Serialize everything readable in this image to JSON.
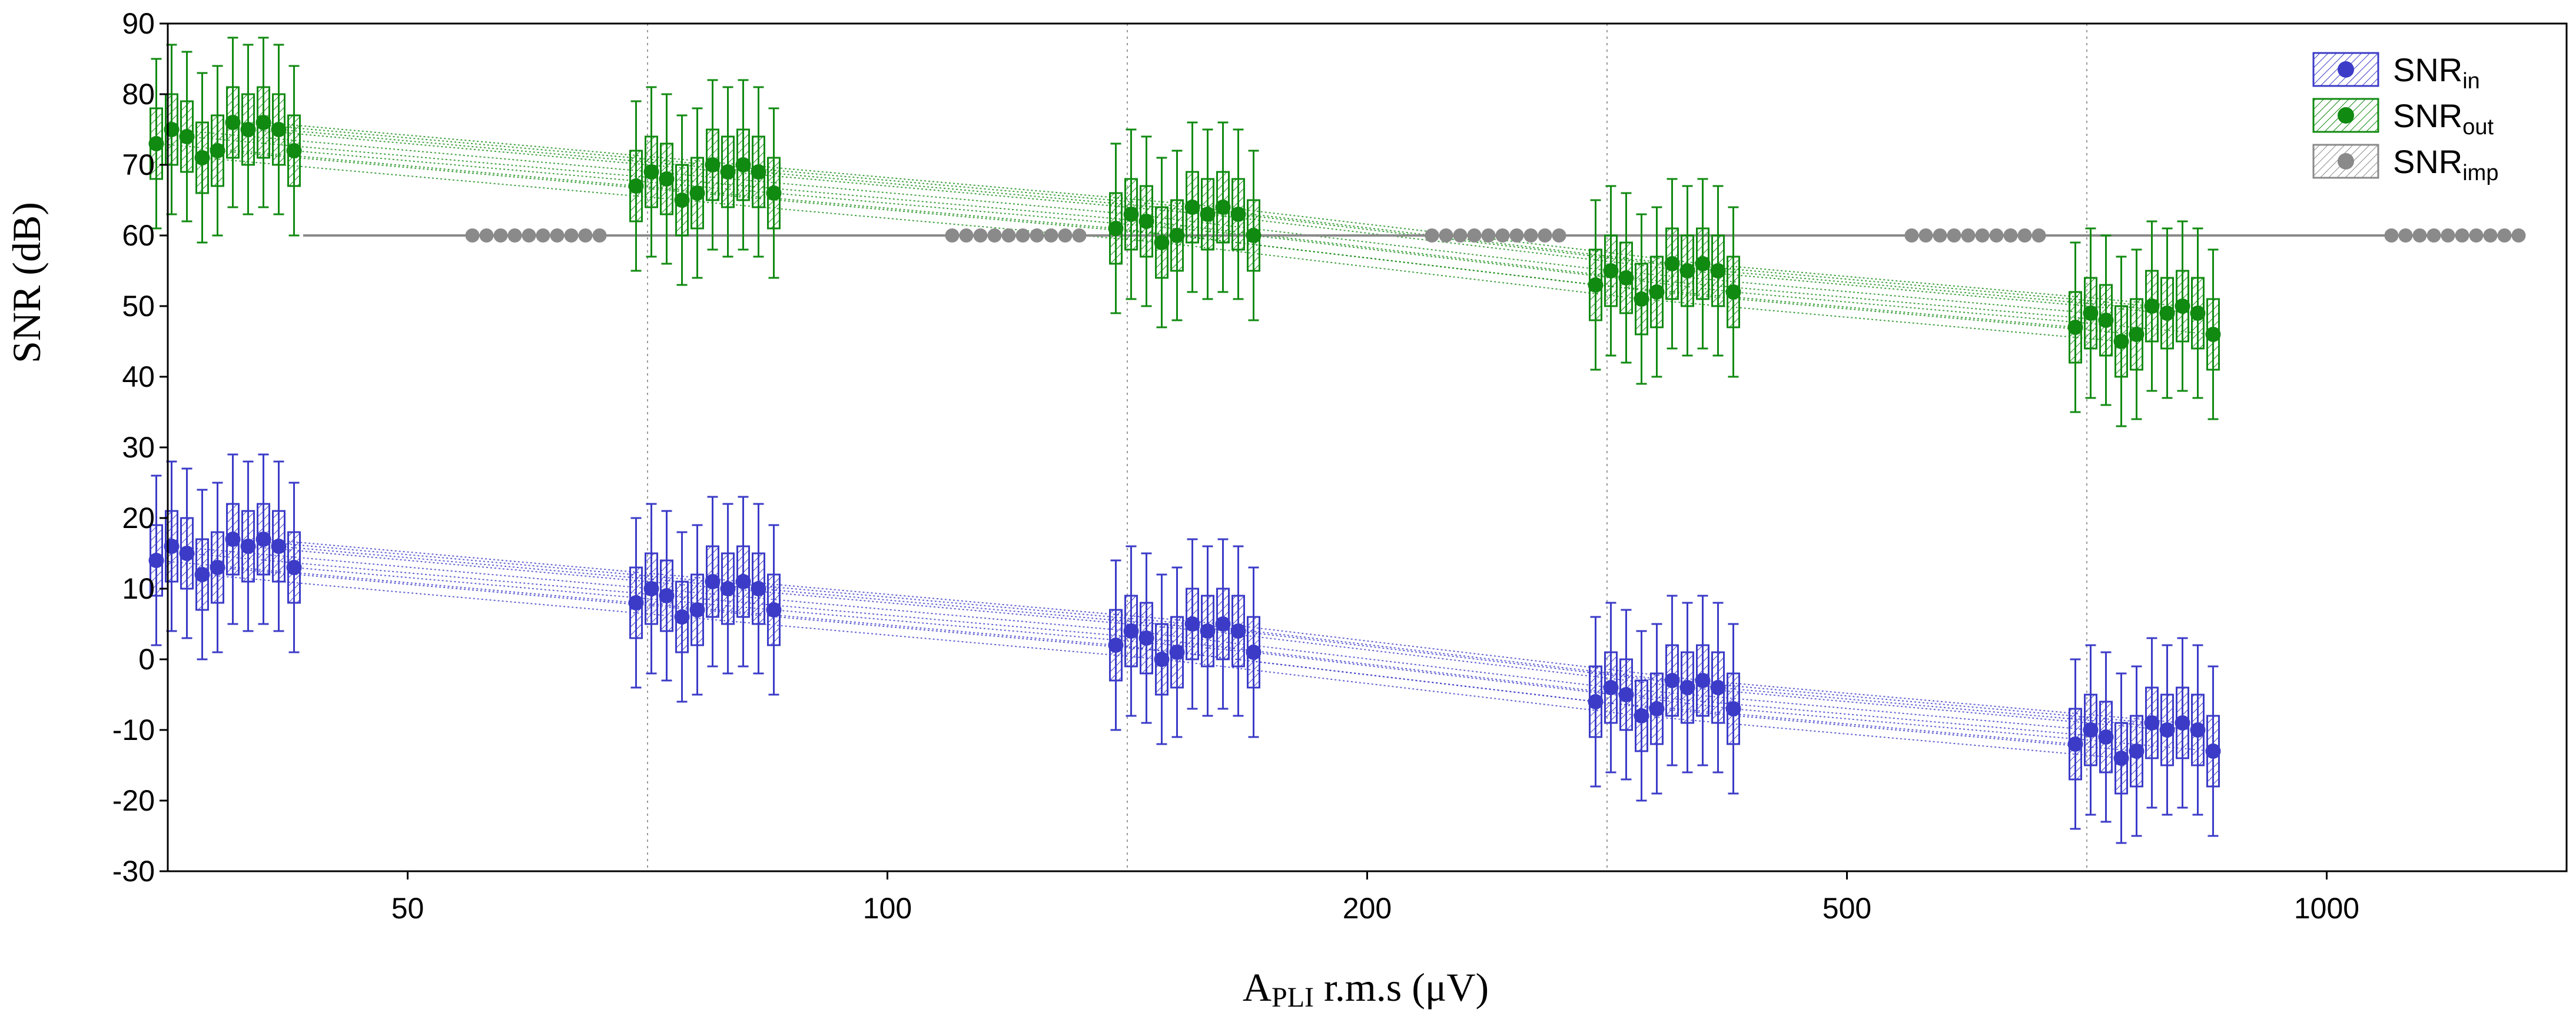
{
  "chart_data": {
    "type": "box",
    "ylabel": "SNR (dB)",
    "xlabel_main": "A",
    "xlabel_sub": "PLI",
    "xlabel_rest": " r.m.s (μV)",
    "ylim": [
      -30,
      90
    ],
    "yticks": [
      -30,
      -20,
      -10,
      0,
      10,
      20,
      30,
      40,
      50,
      60,
      70,
      80,
      90
    ],
    "categories": [
      "50",
      "100",
      "200",
      "500",
      "1000"
    ],
    "legend": [
      {
        "key": "in",
        "base": "SNR",
        "sub": "in",
        "color": "#3b3bc8"
      },
      {
        "key": "out",
        "base": "SNR",
        "sub": "out",
        "color": "#108a10"
      },
      {
        "key": "imp",
        "base": "SNR",
        "sub": "imp",
        "color": "#8a8a8a"
      }
    ],
    "series": [
      {
        "name": "SNR_in",
        "color": "#3b3bc8",
        "medians": [
          [
            14,
            16,
            15,
            12,
            13,
            17,
            16,
            17,
            16,
            13
          ],
          [
            8,
            10,
            9,
            6,
            7,
            11,
            10,
            11,
            10,
            7
          ],
          [
            2,
            4,
            3,
            0,
            1,
            5,
            4,
            5,
            4,
            1
          ],
          [
            -6,
            -4,
            -5,
            -8,
            -7,
            -3,
            -4,
            -3,
            -4,
            -7
          ],
          [
            -12,
            -10,
            -11,
            -14,
            -13,
            -9,
            -10,
            -9,
            -10,
            -13
          ]
        ],
        "spread": {
          "q": 5,
          "w": 12
        }
      },
      {
        "name": "SNR_out",
        "color": "#108a10",
        "medians": [
          [
            73,
            75,
            74,
            71,
            72,
            76,
            75,
            76,
            75,
            72
          ],
          [
            67,
            69,
            68,
            65,
            66,
            70,
            69,
            70,
            69,
            66
          ],
          [
            61,
            63,
            62,
            59,
            60,
            64,
            63,
            64,
            63,
            60
          ],
          [
            53,
            55,
            54,
            51,
            52,
            56,
            55,
            56,
            55,
            52
          ],
          [
            47,
            49,
            48,
            45,
            46,
            50,
            49,
            50,
            49,
            46
          ]
        ],
        "spread": {
          "q": 5,
          "w": 12
        }
      },
      {
        "name": "SNR_imp",
        "color": "#8a8a8a",
        "value": 60
      }
    ]
  }
}
